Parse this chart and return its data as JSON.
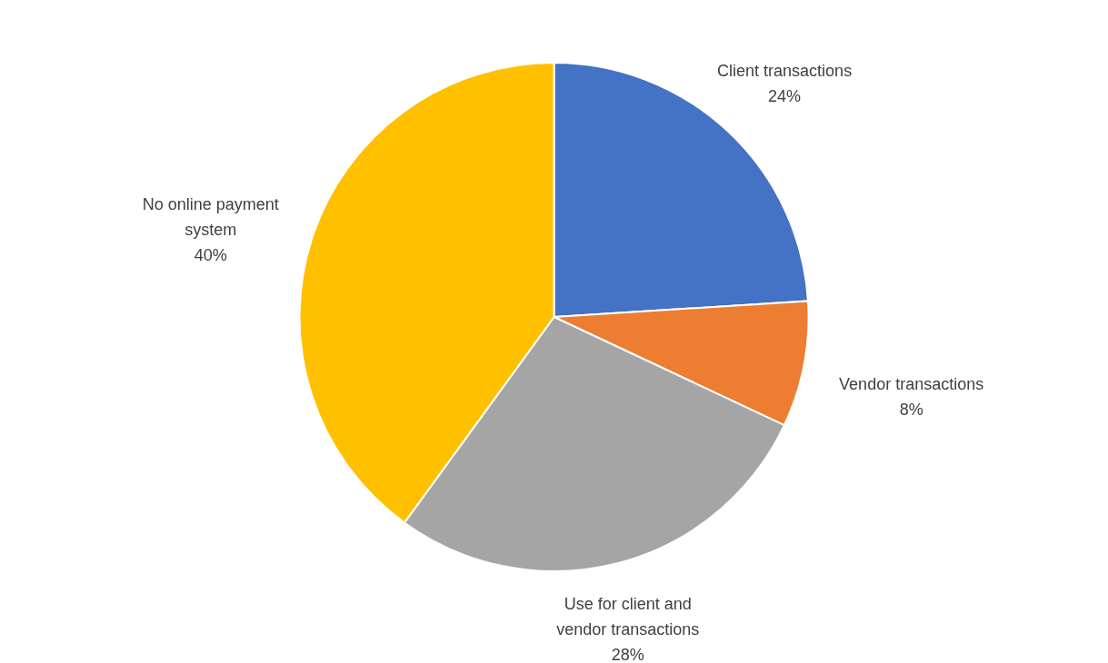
{
  "chart_data": {
    "type": "pie",
    "categories": [
      "Client transactions",
      "Vendor transactions",
      "Use for client and vendor transactions",
      "No online payment system"
    ],
    "values": [
      24,
      8,
      28,
      40
    ],
    "value_labels": [
      "24%",
      "8%",
      "28%",
      "40%"
    ],
    "colors": [
      "#4472c4",
      "#ed7d31",
      "#a5a5a5",
      "#ffc000"
    ],
    "legend": false
  }
}
